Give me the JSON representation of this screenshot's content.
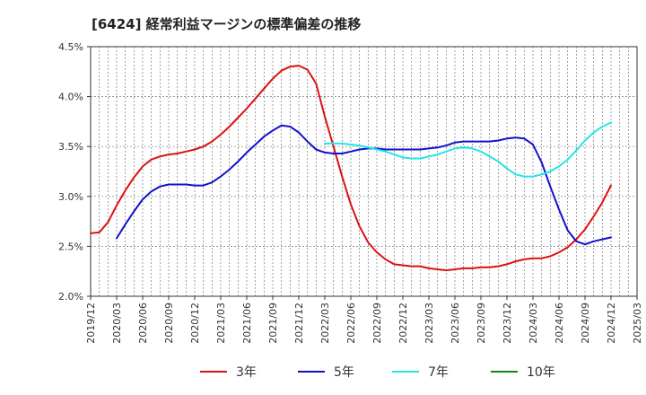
{
  "chart_data": {
    "type": "line",
    "title": "[6424]  経常利益マージンの標準偏差の推移",
    "xlabel": "",
    "ylabel": "",
    "ylim": [
      2.0,
      4.5
    ],
    "y_ticks": [
      "2.0%",
      "2.5%",
      "3.0%",
      "3.5%",
      "4.0%",
      "4.5%"
    ],
    "x_ticks": [
      "2019/12",
      "2020/03",
      "2020/06",
      "2020/09",
      "2020/12",
      "2021/03",
      "2021/06",
      "2021/09",
      "2021/12",
      "2022/03",
      "2022/06",
      "2022/09",
      "2022/12",
      "2023/03",
      "2023/06",
      "2023/09",
      "2023/12",
      "2024/03",
      "2024/06",
      "2024/09",
      "2024/12",
      "2025/03"
    ],
    "grid": true,
    "legend_position": "bottom",
    "series": [
      {
        "name": "3年",
        "color": "#dd1111",
        "x": [
          "2019/12",
          "2020/01",
          "2020/02",
          "2020/03",
          "2020/04",
          "2020/05",
          "2020/06",
          "2020/07",
          "2020/08",
          "2020/09",
          "2020/10",
          "2020/11",
          "2020/12",
          "2021/01",
          "2021/02",
          "2021/03",
          "2021/04",
          "2021/05",
          "2021/06",
          "2021/07",
          "2021/08",
          "2021/09",
          "2021/10",
          "2021/11",
          "2021/12",
          "2022/01",
          "2022/02",
          "2022/03",
          "2022/04",
          "2022/05",
          "2022/06",
          "2022/07",
          "2022/08",
          "2022/09",
          "2022/10",
          "2022/11",
          "2022/12",
          "2023/01",
          "2023/02",
          "2023/03",
          "2023/04",
          "2023/05",
          "2023/06",
          "2023/07",
          "2023/08",
          "2023/09",
          "2023/10",
          "2023/11",
          "2023/12",
          "2024/01",
          "2024/02",
          "2024/03",
          "2024/04",
          "2024/05",
          "2024/06",
          "2024/07",
          "2024/08",
          "2024/09",
          "2024/10",
          "2024/11",
          "2024/12"
        ],
        "values": [
          2.63,
          2.64,
          2.74,
          2.91,
          3.06,
          3.19,
          3.3,
          3.37,
          3.4,
          3.42,
          3.43,
          3.45,
          3.47,
          3.5,
          3.55,
          3.62,
          3.7,
          3.79,
          3.88,
          3.98,
          4.08,
          4.18,
          4.26,
          4.3,
          4.31,
          4.27,
          4.13,
          3.8,
          3.5,
          3.2,
          2.92,
          2.7,
          2.54,
          2.44,
          2.37,
          2.32,
          2.31,
          2.3,
          2.3,
          2.28,
          2.27,
          2.26,
          2.27,
          2.28,
          2.28,
          2.29,
          2.29,
          2.3,
          2.32,
          2.35,
          2.37,
          2.38,
          2.38,
          2.4,
          2.44,
          2.49,
          2.57,
          2.67,
          2.8,
          2.94,
          3.11
        ]
      },
      {
        "name": "5年",
        "color": "#1111cc",
        "x": [
          "2020/03",
          "2020/04",
          "2020/05",
          "2020/06",
          "2020/07",
          "2020/08",
          "2020/09",
          "2020/10",
          "2020/11",
          "2020/12",
          "2021/01",
          "2021/02",
          "2021/03",
          "2021/04",
          "2021/05",
          "2021/06",
          "2021/07",
          "2021/08",
          "2021/09",
          "2021/10",
          "2021/11",
          "2021/12",
          "2022/01",
          "2022/02",
          "2022/03",
          "2022/04",
          "2022/05",
          "2022/06",
          "2022/07",
          "2022/08",
          "2022/09",
          "2022/10",
          "2022/11",
          "2022/12",
          "2023/01",
          "2023/02",
          "2023/03",
          "2023/04",
          "2023/05",
          "2023/06",
          "2023/07",
          "2023/08",
          "2023/09",
          "2023/10",
          "2023/11",
          "2023/12",
          "2024/01",
          "2024/02",
          "2024/03",
          "2024/04",
          "2024/05",
          "2024/06",
          "2024/07",
          "2024/08",
          "2024/09",
          "2024/10",
          "2024/11",
          "2024/12"
        ],
        "values": [
          2.58,
          2.72,
          2.85,
          2.97,
          3.05,
          3.1,
          3.12,
          3.12,
          3.12,
          3.11,
          3.11,
          3.14,
          3.2,
          3.27,
          3.35,
          3.44,
          3.52,
          3.6,
          3.66,
          3.71,
          3.7,
          3.64,
          3.55,
          3.47,
          3.44,
          3.43,
          3.43,
          3.45,
          3.47,
          3.48,
          3.48,
          3.47,
          3.47,
          3.47,
          3.47,
          3.47,
          3.48,
          3.49,
          3.51,
          3.54,
          3.55,
          3.55,
          3.55,
          3.55,
          3.56,
          3.58,
          3.59,
          3.58,
          3.52,
          3.34,
          3.1,
          2.87,
          2.66,
          2.55,
          2.52,
          2.55,
          2.57,
          2.59
        ]
      },
      {
        "name": "7年",
        "color": "#22e6e6",
        "x": [
          "2022/03",
          "2022/04",
          "2022/05",
          "2022/06",
          "2022/07",
          "2022/08",
          "2022/09",
          "2022/10",
          "2022/11",
          "2022/12",
          "2023/01",
          "2023/02",
          "2023/03",
          "2023/04",
          "2023/05",
          "2023/06",
          "2023/07",
          "2023/08",
          "2023/09",
          "2023/10",
          "2023/11",
          "2023/12",
          "2024/01",
          "2024/02",
          "2024/03",
          "2024/04",
          "2024/05",
          "2024/06",
          "2024/07",
          "2024/08",
          "2024/09",
          "2024/10",
          "2024/11",
          "2024/12"
        ],
        "values": [
          3.53,
          3.53,
          3.53,
          3.52,
          3.51,
          3.49,
          3.47,
          3.45,
          3.42,
          3.39,
          3.38,
          3.38,
          3.4,
          3.42,
          3.45,
          3.48,
          3.49,
          3.48,
          3.45,
          3.4,
          3.35,
          3.28,
          3.22,
          3.2,
          3.2,
          3.22,
          3.25,
          3.3,
          3.37,
          3.46,
          3.56,
          3.64,
          3.7,
          3.74
        ]
      },
      {
        "name": "10年",
        "color": "#118811",
        "x": [],
        "values": []
      }
    ]
  }
}
